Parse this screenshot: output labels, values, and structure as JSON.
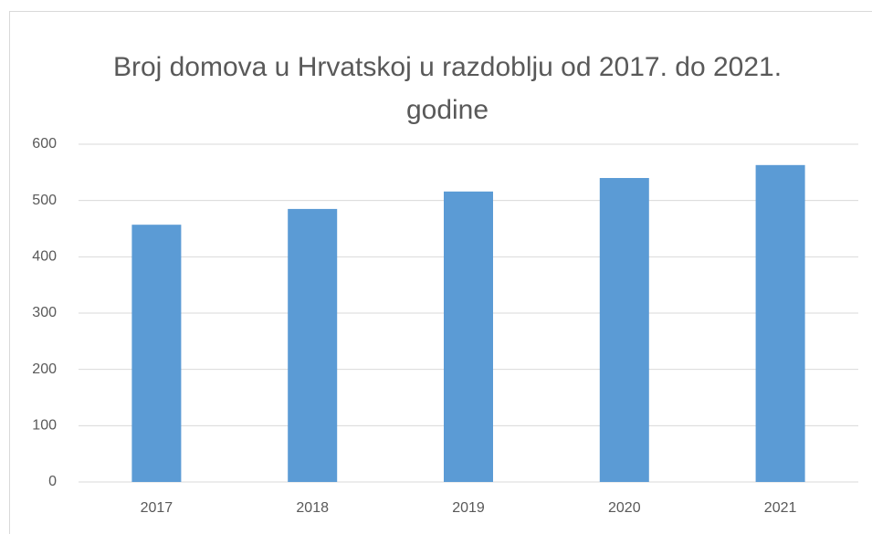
{
  "chart_data": {
    "type": "bar",
    "title": "Broj domova u Hrvatskoj u razdoblju od 2017. do 2021. godine",
    "categories": [
      "2017",
      "2018",
      "2019",
      "2020",
      "2021"
    ],
    "values": [
      457,
      485,
      516,
      540,
      563
    ],
    "color": "#5b9bd5",
    "ylim": [
      0,
      600
    ],
    "yticks": [
      0,
      100,
      200,
      300,
      400,
      500,
      600
    ],
    "grid": true
  }
}
